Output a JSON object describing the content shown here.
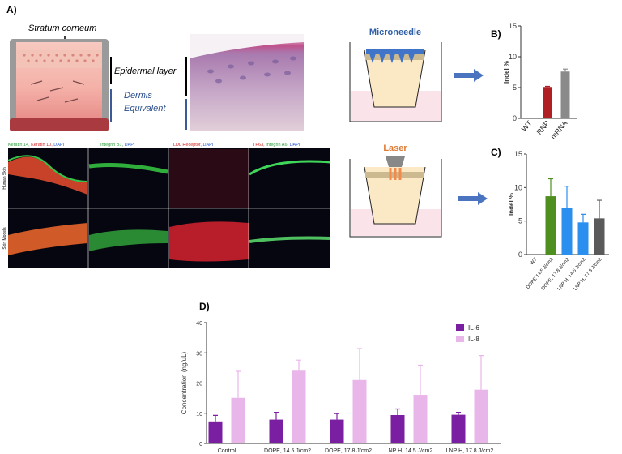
{
  "panel_a": {
    "label": "A)",
    "stratum": "Stratum corneum",
    "epidermal": "Epidermal layer",
    "dermis": [
      "Dermis",
      "Equivalent"
    ],
    "stains": [
      [
        "Keratin 14,",
        "Keratin 10,",
        "DAPI"
      ],
      [
        "Integrin B1,",
        "DAPI"
      ],
      [
        "LDL Receptor,",
        "DAPI"
      ],
      [
        "TP63,",
        "Integrin A6,",
        "DAPI"
      ]
    ],
    "rows": [
      "Human Skin",
      "Skin Models"
    ],
    "microneedle": "Microneedle",
    "laser": "Laser"
  },
  "chart_data": [
    {
      "type": "bar",
      "label": "B)",
      "ylabel": "Indel %",
      "categories": [
        "WT",
        "RNP",
        "mRNA"
      ],
      "values": [
        0,
        5.1,
        7.6
      ],
      "errors": [
        null,
        0.1,
        0.4
      ],
      "colors": [
        "#ffffff",
        "#b01f24",
        "#8a8a8a"
      ],
      "ylim": [
        0,
        15
      ],
      "yticks": [
        0,
        5,
        10,
        15
      ]
    },
    {
      "type": "bar",
      "label": "C)",
      "ylabel": "Indel %",
      "categories": [
        "WT",
        "DOPE 14.5 J/cm2",
        "DOPE, 17.8 J/cm2",
        "LNP H, 14.5 J/cm2",
        "LNP H, 17.8 J/cm2"
      ],
      "values": [
        0,
        8.7,
        6.9,
        4.8,
        5.4
      ],
      "errors": [
        null,
        2.6,
        3.3,
        1.2,
        2.7
      ],
      "colors": [
        "#ffffff",
        "#4e8f1f",
        "#2b8ff0",
        "#2b8ff0",
        "#5a5a5a"
      ],
      "ylim": [
        0,
        15
      ],
      "yticks": [
        0,
        5,
        10,
        15
      ]
    },
    {
      "type": "grouped-bar",
      "label": "D)",
      "ylabel": "Concentration (ng/uL)",
      "categories": [
        "Control",
        "DOPE, 14.5 J/cm2",
        "DOPE, 17.8 J/cm2",
        "LNP H, 14.5 J/cm2",
        "LNP H, 17.8 J/cm2"
      ],
      "series": [
        {
          "name": "IL-6",
          "color": "#7b1fa2",
          "values": [
            7.3,
            7.9,
            7.9,
            9.4,
            9.5
          ],
          "errors": [
            2.0,
            2.4,
            2.0,
            2.0,
            0.8
          ]
        },
        {
          "name": "IL-8",
          "color": "#e9b6ea",
          "values": [
            15.1,
            24.1,
            21.0,
            16.1,
            17.8
          ],
          "errors": [
            8.8,
            3.5,
            10.4,
            9.8,
            11.3
          ]
        }
      ],
      "ylim": [
        0,
        40
      ],
      "yticks": [
        0,
        10,
        20,
        30,
        40
      ],
      "legend": "top-right"
    }
  ]
}
